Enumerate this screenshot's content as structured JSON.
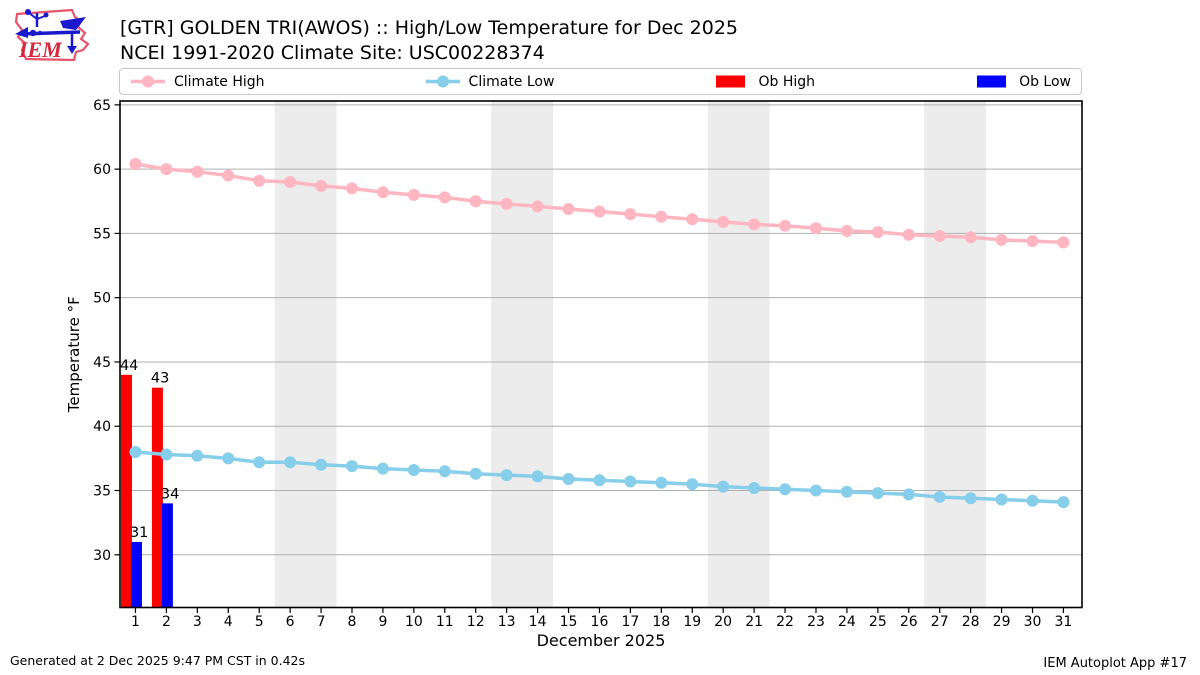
{
  "header": {
    "logo_text": "IEM",
    "title_line1": "[GTR] GOLDEN TRI(AWOS) :: High/Low Temperature for Dec 2025",
    "title_line2": "NCEI 1991-2020 Climate Site: USC00228374"
  },
  "legend": {
    "items": [
      {
        "label": "Climate High",
        "type": "line",
        "color": "#ffb6c1"
      },
      {
        "label": "Climate Low",
        "type": "line",
        "color": "#87ceeb"
      },
      {
        "label": "Ob High",
        "type": "patch",
        "color": "#ff0000"
      },
      {
        "label": "Ob Low",
        "type": "patch",
        "color": "#0000ff"
      }
    ]
  },
  "colors": {
    "climate_high": "#ffb6c1",
    "climate_low": "#87ceeb",
    "ob_high": "#ff0000",
    "ob_low": "#0000ff",
    "band": "#ececec",
    "grid": "#b0b0b0",
    "frame": "#000000"
  },
  "chart_data": {
    "type": "line+bar",
    "title": "[GTR] GOLDEN TRI(AWOS) :: High/Low Temperature for Dec 2025",
    "subtitle": "NCEI 1991-2020 Climate Site: USC00228374",
    "xlabel": "December 2025",
    "ylabel": "Temperature °F",
    "xlim": [
      0.5,
      31.6
    ],
    "ylim": [
      25.9,
      65.3
    ],
    "yticks": [
      30,
      35,
      40,
      45,
      50,
      55,
      60,
      65
    ],
    "grid": "horizontal",
    "legend_position": "top",
    "weekend_bands": [
      [
        5.5,
        7.5
      ],
      [
        12.5,
        14.5
      ],
      [
        19.5,
        21.5
      ],
      [
        26.5,
        28.5
      ]
    ],
    "days": [
      1,
      2,
      3,
      4,
      5,
      6,
      7,
      8,
      9,
      10,
      11,
      12,
      13,
      14,
      15,
      16,
      17,
      18,
      19,
      20,
      21,
      22,
      23,
      24,
      25,
      26,
      27,
      28,
      29,
      30,
      31
    ],
    "series": [
      {
        "name": "Climate High",
        "type": "line",
        "color": "#ffb6c1",
        "values": [
          60.4,
          60.0,
          59.8,
          59.5,
          59.1,
          59.0,
          58.7,
          58.5,
          58.2,
          58.0,
          57.8,
          57.5,
          57.3,
          57.1,
          56.9,
          56.7,
          56.5,
          56.3,
          56.1,
          55.9,
          55.7,
          55.6,
          55.4,
          55.2,
          55.1,
          54.9,
          54.8,
          54.7,
          54.5,
          54.4,
          54.3
        ]
      },
      {
        "name": "Climate Low",
        "type": "line",
        "color": "#87ceeb",
        "values": [
          38.0,
          37.8,
          37.7,
          37.5,
          37.2,
          37.2,
          37.0,
          36.9,
          36.7,
          36.6,
          36.5,
          36.3,
          36.2,
          36.1,
          35.9,
          35.8,
          35.7,
          35.6,
          35.5,
          35.3,
          35.2,
          35.1,
          35.0,
          34.9,
          34.8,
          34.7,
          34.5,
          34.4,
          34.3,
          34.2,
          34.1
        ]
      },
      {
        "name": "Ob High",
        "type": "bar",
        "color": "#ff0000",
        "values": [
          {
            "day": 1,
            "value": 44,
            "label": "44"
          },
          {
            "day": 2,
            "value": 43,
            "label": "43"
          }
        ]
      },
      {
        "name": "Ob Low",
        "type": "bar",
        "color": "#0000ff",
        "values": [
          {
            "day": 1,
            "value": 31,
            "label": "31"
          },
          {
            "day": 2,
            "value": 34,
            "label": "34"
          }
        ]
      }
    ]
  },
  "footer": {
    "left": "Generated at 2 Dec 2025 9:47 PM CST in 0.42s",
    "right": "IEM Autoplot App #17"
  }
}
